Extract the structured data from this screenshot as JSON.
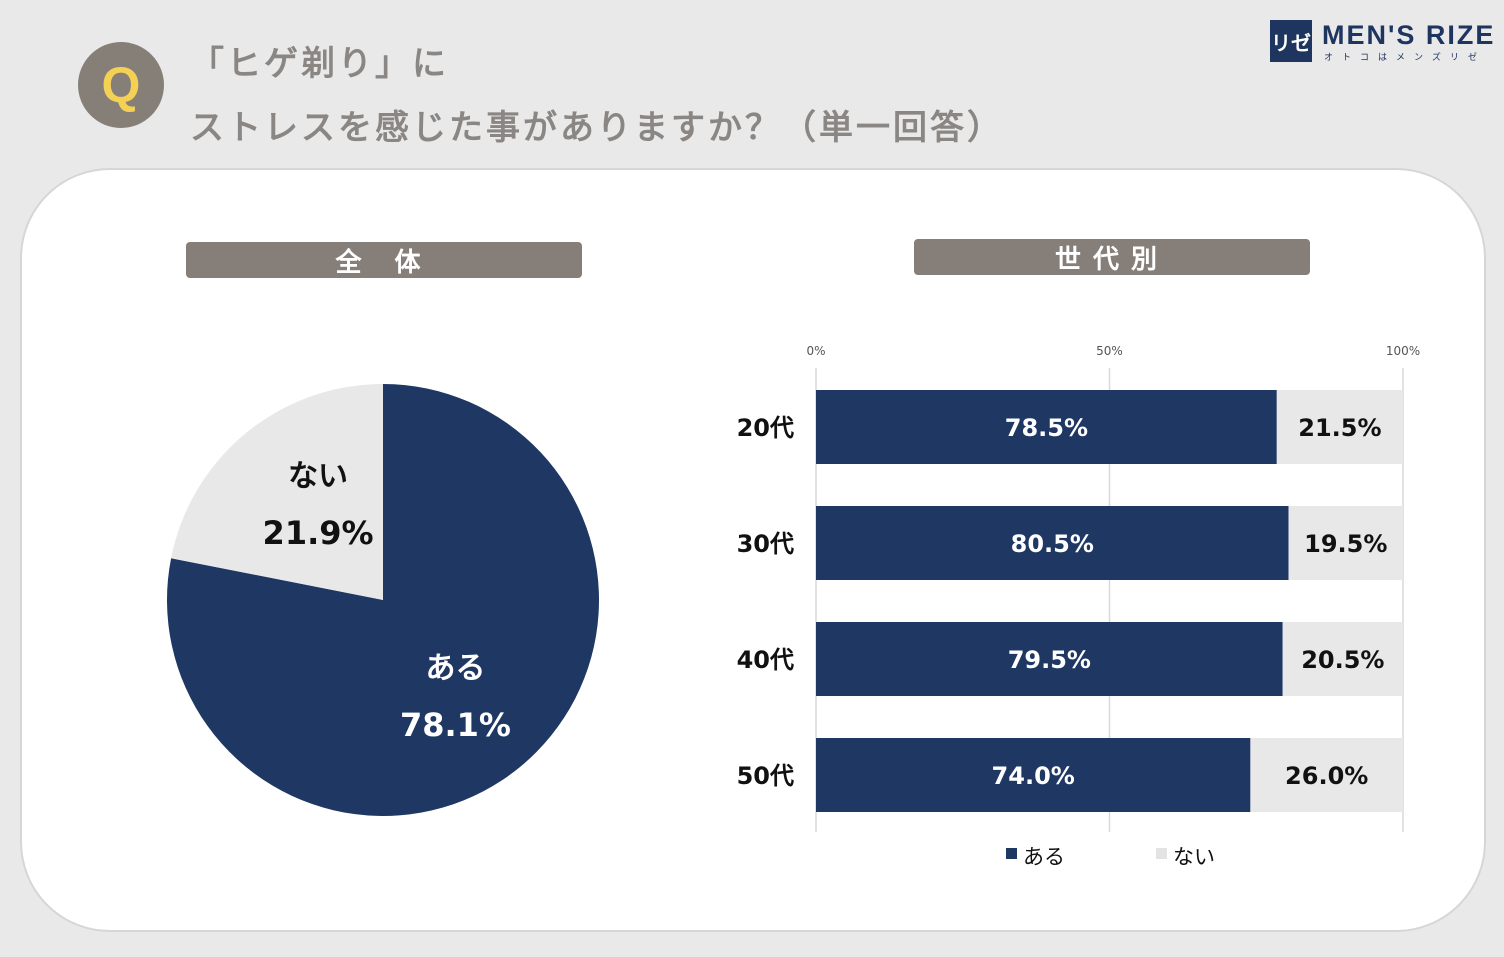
{
  "question": {
    "badge": "Q",
    "line1": "「ヒゲ剃り」に",
    "line2": "ストレスを感じた事がありますか？（単一回答）"
  },
  "logo": {
    "mark": "リゼ",
    "title": "MEN'S RIZE",
    "subtitle": "オトコはメンズリゼ"
  },
  "sections": {
    "overall": "全 体",
    "by_generation": "世代別"
  },
  "colors": {
    "aru": "#1f3763",
    "nai": "#e8e8e8",
    "label_bg": "#867f79",
    "grid": "#d9d9d9"
  },
  "chart_data": [
    {
      "type": "pie",
      "slices": [
        {
          "label": "ある",
          "value": 78.1,
          "value_label": "78.1%"
        },
        {
          "label": "ない",
          "value": 21.9,
          "value_label": "21.9%"
        }
      ]
    },
    {
      "type": "bar",
      "orientation": "horizontal",
      "stacked": true,
      "categories": [
        "20代",
        "30代",
        "40代",
        "50代"
      ],
      "series": [
        {
          "name": "ある",
          "values": [
            78.5,
            80.5,
            79.5,
            74.0
          ],
          "labels": [
            "78.5%",
            "80.5%",
            "79.5%",
            "74.0%"
          ]
        },
        {
          "name": "ない",
          "values": [
            21.5,
            19.5,
            20.5,
            26.0
          ],
          "labels": [
            "21.5%",
            "19.5%",
            "20.5%",
            "26.0%"
          ]
        }
      ],
      "xlim": [
        0,
        100
      ],
      "xticks": [
        0,
        50,
        100
      ],
      "xtick_labels": [
        "0%",
        "50%",
        "100%"
      ],
      "grid": true,
      "legend_placement": "bottom"
    }
  ]
}
